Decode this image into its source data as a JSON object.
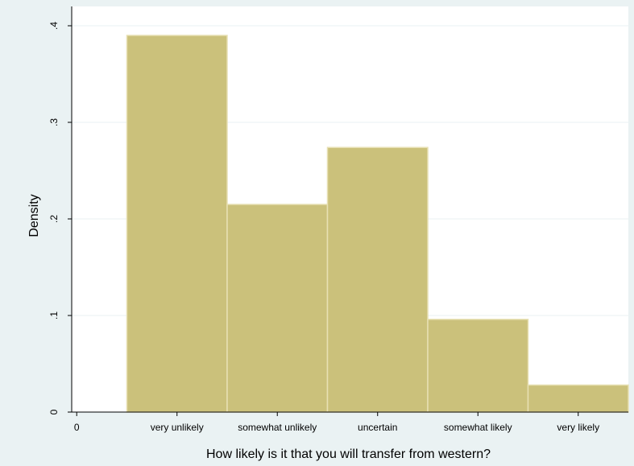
{
  "chart_data": {
    "type": "bar",
    "title": "",
    "xlabel": "How likely is it that you will transfer from western?",
    "ylabel": "Density",
    "x_ticks": [
      {
        "value": 0,
        "label": "0"
      },
      {
        "value": 1,
        "label": "very unlikely"
      },
      {
        "value": 2,
        "label": "somewhat unlikely"
      },
      {
        "value": 3,
        "label": "uncertain"
      },
      {
        "value": 4,
        "label": "somewhat likely"
      },
      {
        "value": 5,
        "label": "very likely"
      }
    ],
    "y_ticks": [
      {
        "value": 0,
        "label": "0"
      },
      {
        "value": 0.1,
        "label": ".1"
      },
      {
        "value": 0.2,
        "label": ".2"
      },
      {
        "value": 0.3,
        "label": ".3"
      },
      {
        "value": 0.4,
        "label": ".4"
      }
    ],
    "bins": [
      {
        "start": 0.5,
        "end": 1.5,
        "value": 0.39
      },
      {
        "start": 1.5,
        "end": 2.5,
        "value": 0.215
      },
      {
        "start": 2.5,
        "end": 3.5,
        "value": 0.274
      },
      {
        "start": 3.5,
        "end": 4.5,
        "value": 0.096
      },
      {
        "start": 4.5,
        "end": 5.5,
        "value": 0.028
      }
    ],
    "xlim": [
      -0.05,
      5.5
    ],
    "ylim": [
      0,
      0.42
    ],
    "grid": true,
    "colors": {
      "bar_fill": "#cbc17b",
      "bar_edge": "#e7e0b3",
      "plot_bg": "#ffffff",
      "page_bg": "#eaf2f3",
      "grid": "#eaf2f3"
    }
  }
}
